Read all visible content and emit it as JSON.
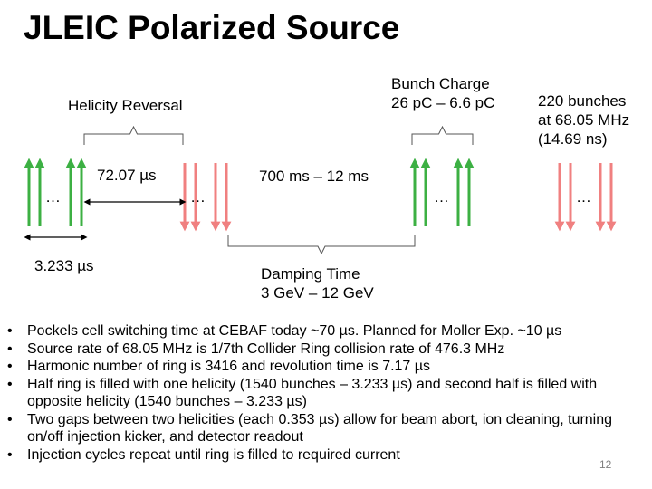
{
  "title": "JLEIC Polarized Source",
  "diagram": {
    "helicity_reversal": "Helicity Reversal",
    "bunch_charge_line1": "Bunch Charge",
    "bunch_charge_line2": "26 pC – 6.6 pC",
    "bunches_line1": "220 bunches",
    "bunches_line2": "at 68.05 MHz",
    "bunches_line3": "(14.69 ns)",
    "gap_time": "72.07 µs",
    "reversal_time": "700 ms – 12 ms",
    "fill_time": "3.233 µs",
    "damping_line1": "Damping Time",
    "damping_line2": "3 GeV – 12 GeV",
    "ellipsis": "…",
    "colors": {
      "green": "#3cb043",
      "red": "#f08080"
    }
  },
  "bullets": [
    "Pockels cell switching time at CEBAF today ~70 µs. Planned for Moller Exp. ~10 µs",
    "Source rate of 68.05 MHz is 1/7th Collider Ring collision rate of 476.3 MHz",
    "Harmonic number of ring is 3416 and revolution time is 7.17 µs",
    "Half ring is filled with one helicity (1540 bunches – 3.233 µs) and second half is filled with opposite helicity (1540 bunches – 3.233 µs)",
    "Two gaps between two helicities (each 0.353 µs) allow for beam abort, ion cleaning, turning on/off injection kicker, and detector readout",
    "Injection cycles repeat until ring is filled to required current"
  ],
  "bullet_symbol": "•",
  "page_number": "12"
}
